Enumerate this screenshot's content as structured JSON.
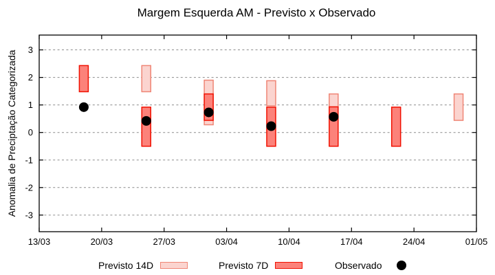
{
  "title": "Margem Esquerda AM - Previsto x Observado",
  "chart_data": {
    "type": "bar",
    "subtype": "range-bars-with-scatter",
    "title": "Margem Esquerda AM - Previsto x Observado",
    "xlabel": "",
    "ylabel": "Anomalia de Preciptação Categorizada",
    "grid": true,
    "grid_style": "dashed-gray",
    "legend_position": "bottom",
    "x_tick_labels": [
      "13/03",
      "20/03",
      "27/03",
      "03/04",
      "10/04",
      "17/04",
      "24/04",
      "01/05"
    ],
    "x_tick_days": [
      0,
      7,
      14,
      21,
      28,
      35,
      42,
      49
    ],
    "xlim_days": [
      0,
      49
    ],
    "y_ticks": [
      -3,
      -2,
      -1,
      0,
      1,
      2,
      3
    ],
    "ylim": [
      -3.6,
      3.55
    ],
    "categories": [
      "18/03",
      "25/03",
      "01/04",
      "08/04",
      "15/04",
      "22/04",
      "29/04"
    ],
    "category_days": [
      5,
      12,
      19,
      26,
      33,
      40,
      47
    ],
    "series": [
      {
        "name": "Previsto 14D",
        "type": "range-bar",
        "color_fill": "#fbd4cf",
        "color_border": "#ef8575",
        "ranges": [
          null,
          [
            1.48,
            2.43
          ],
          [
            0.28,
            1.9
          ],
          [
            0.97,
            1.88
          ],
          [
            0.93,
            1.4
          ],
          null,
          [
            0.44,
            1.4
          ]
        ]
      },
      {
        "name": "Previsto 7D",
        "type": "range-bar",
        "color_fill": "#fc827a",
        "color_border": "#f01000",
        "ranges": [
          [
            1.48,
            2.43
          ],
          [
            -0.5,
            0.92
          ],
          [
            0.44,
            1.4
          ],
          [
            -0.5,
            0.92
          ],
          [
            -0.5,
            0.93
          ],
          [
            -0.5,
            0.92
          ],
          null
        ]
      },
      {
        "name": "Observado",
        "type": "scatter",
        "color": "#000000",
        "values": [
          0.92,
          0.42,
          0.73,
          0.23,
          0.57,
          null,
          null
        ]
      }
    ]
  },
  "colors": {
    "background": "#ffffff",
    "frame": "#000000",
    "gridline": "#8c8c8c",
    "text": "#000000"
  }
}
